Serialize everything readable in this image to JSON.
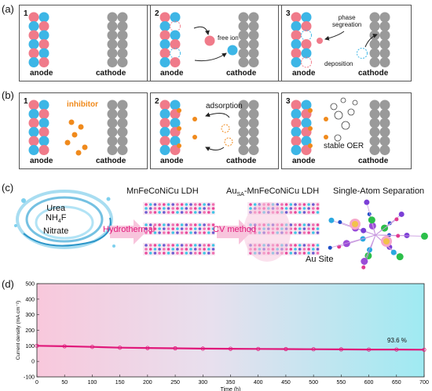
{
  "panel_a": {
    "label": "(a)",
    "steps": [
      {
        "num": "1",
        "anode": "anode",
        "cathode": "cathode"
      },
      {
        "num": "2",
        "anode": "anode",
        "cathode": "cathode",
        "note": "free ion"
      },
      {
        "num": "3",
        "anode": "anode",
        "cathode": "cathode",
        "note_top": "phase\nsegreation",
        "note_bottom": "deposition"
      }
    ]
  },
  "panel_b": {
    "label": "(b)",
    "steps": [
      {
        "num": "1",
        "anode": "anode",
        "cathode": "cathode",
        "note": "inhibitor"
      },
      {
        "num": "2",
        "anode": "anode",
        "cathode": "cathode",
        "note": "adsorption"
      },
      {
        "num": "3",
        "anode": "anode",
        "cathode": "cathode",
        "note": "stable OER"
      }
    ]
  },
  "panel_c": {
    "label": "(c)",
    "reagents": [
      "Urea",
      "NH4F",
      "Nitrate"
    ],
    "arrow1": "Hydrothermal",
    "arrow2": "CV method",
    "title1": "MnFeCoNiCu LDH",
    "title2_prefix": "Au",
    "title2_sub": "SA",
    "title2_suffix": "-MnFeCoNiCu LDH",
    "title3": "Single-Atom Separation",
    "site_label": "Au Site"
  },
  "panel_d": {
    "label": "(d)",
    "annotation": "93.6 %",
    "chart_data": {
      "type": "line",
      "xlabel": "Time (h)",
      "ylabel": "Current density (mA cm⁻²)",
      "xlim": [
        0,
        700
      ],
      "ylim": [
        -100,
        500
      ],
      "xticks": [
        0,
        50,
        100,
        150,
        200,
        250,
        300,
        350,
        400,
        450,
        500,
        550,
        600,
        650,
        700
      ],
      "yticks": [
        -100,
        0,
        100,
        200,
        300,
        400,
        500
      ],
      "series": [
        {
          "x": [
            0,
            50,
            100,
            150,
            200,
            250,
            300,
            350,
            400,
            450,
            500,
            550,
            600,
            650,
            700
          ],
          "y": [
            100,
            97,
            93,
            88,
            86,
            84,
            82,
            81,
            80,
            79,
            78,
            77,
            76,
            76,
            75
          ]
        }
      ],
      "colors": {
        "line": "#e0187a",
        "bg_left": "#f8c8dc",
        "bg_right": "#9feaf2"
      }
    }
  }
}
